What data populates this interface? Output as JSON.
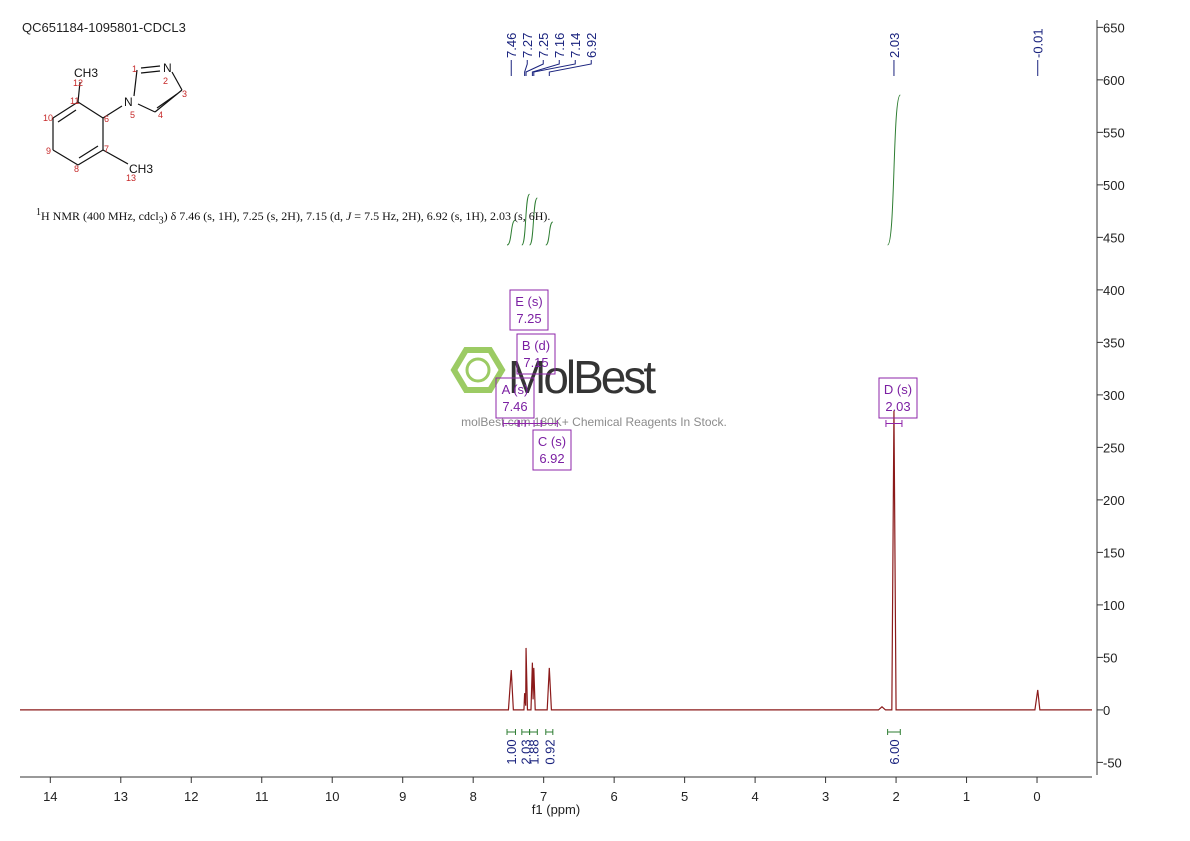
{
  "chart_data": {
    "type": "line",
    "title": "QC651184-1095801-CDCL3",
    "x_label": "f1 (ppm)",
    "description": [
      "1",
      "H NMR (400 MHz, cdcl",
      "3",
      ") δ 7.46 (s, 1H), 7.25 (s, 2H), 7.15 (d, ",
      "J",
      " = 7.5 Hz, 2H), 6.92 (s, 1H), 2.03 (s, 6H)."
    ],
    "structure": {
      "atoms": [
        "CH3",
        "N",
        "N",
        "CH3"
      ],
      "numbers": [
        "1",
        "2",
        "3",
        "4",
        "5",
        "6",
        "7",
        "8",
        "9",
        "10",
        "11",
        "12",
        "13"
      ]
    },
    "watermark": {
      "logo": "MolBest",
      "tagline": "molBest.com 180K+ Chemical Reagents In Stock."
    },
    "color": "#8b1a1a",
    "xlim": [
      14.43,
      -0.78
    ],
    "ylim": [
      -62,
      657
    ],
    "xticks": [
      14,
      13,
      12,
      11,
      10,
      9,
      8,
      7,
      6,
      5,
      4,
      3,
      2,
      1,
      0
    ],
    "yticks": [
      -50,
      0,
      50,
      100,
      150,
      200,
      250,
      300,
      350,
      400,
      450,
      500,
      550,
      600,
      650
    ],
    "x": [
      14.43,
      7.5,
      7.46,
      7.43,
      7.28,
      7.27,
      7.255,
      7.25,
      7.23,
      7.18,
      7.16,
      7.15,
      7.14,
      7.12,
      6.95,
      6.92,
      6.89,
      2.25,
      2.2,
      2.15,
      2.06,
      2.03,
      2.0,
      0.03,
      -0.01,
      -0.04,
      -0.78
    ],
    "values": [
      0,
      0,
      38,
      0,
      0,
      16,
      4,
      59,
      0,
      0,
      45,
      10,
      40,
      0,
      0,
      40,
      0,
      0,
      3,
      0,
      0,
      285,
      0,
      0,
      19,
      0,
      0
    ],
    "peak_labels": [
      7.46,
      7.27,
      7.25,
      7.16,
      7.14,
      6.92,
      2.03,
      -0.01
    ],
    "integrals": [
      {
        "range": [
          7.52,
          7.4
        ],
        "value": {
          "value": 1,
          "label": "1.00"
        }
      },
      {
        "range": [
          7.31,
          7.2
        ],
        "value": 2.03
      },
      {
        "range": [
          7.2,
          7.09
        ],
        "value": 1.88
      },
      {
        "range": [
          6.97,
          6.87
        ],
        "value": 0.92
      },
      {
        "range": [
          2.12,
          1.94
        ],
        "value": {
          "value": 6,
          "label": "6.00"
        }
      }
    ],
    "multiplets": [
      {
        "name": "E (s)",
        "shift": 7.25
      },
      {
        "name": "B (d)",
        "shift": 7.15
      },
      {
        "name": "A (s)",
        "shift": 7.46
      },
      {
        "name": "C (s)",
        "shift": 6.92
      },
      {
        "name": "D (s)",
        "shift": 2.03
      }
    ]
  }
}
